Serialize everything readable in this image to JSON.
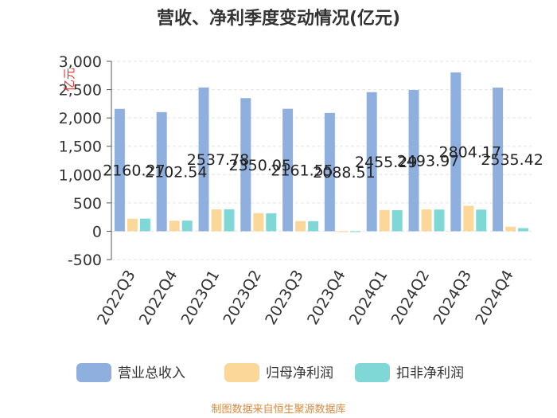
{
  "chart_data": {
    "type": "bar",
    "title": "营收、净利季度变动情况(亿元)",
    "unit_label": "亿元",
    "categories": [
      "2022Q3",
      "2022Q4",
      "2023Q1",
      "2023Q2",
      "2023Q3",
      "2023Q4",
      "2024Q1",
      "2024Q2",
      "2024Q3",
      "2024Q4"
    ],
    "series": [
      {
        "name": "营业总收入",
        "color": "#8fb0df",
        "values": [
          2160.27,
          2102.54,
          2537.78,
          2350.05,
          2161.55,
          2088.51,
          2455.29,
          2493.97,
          2804.17,
          2535.42
        ]
      },
      {
        "name": "归母净利润",
        "color": "#fbd89a",
        "values": [
          220,
          185,
          385,
          320,
          180,
          -15,
          375,
          385,
          450,
          80
        ]
      },
      {
        "name": "扣非净利润",
        "color": "#7fd8d6",
        "values": [
          222,
          188,
          388,
          318,
          178,
          -8,
          372,
          383,
          382,
          55
        ]
      }
    ],
    "value_labels": [
      "2160.27",
      "2102.54",
      "2537.78",
      "2350.05",
      "2161.55",
      "2088.51",
      "2455.29",
      "2493.97",
      "2804.17",
      "2535.42"
    ],
    "y_ticks": [
      "3,000",
      "2,500",
      "2,000",
      "1,500",
      "1,000",
      "500",
      "0",
      "-500"
    ],
    "ylim": [
      -500,
      3000
    ],
    "grid": true,
    "legend": "bottom"
  },
  "source": "制图数据来自恒生聚源数据库"
}
